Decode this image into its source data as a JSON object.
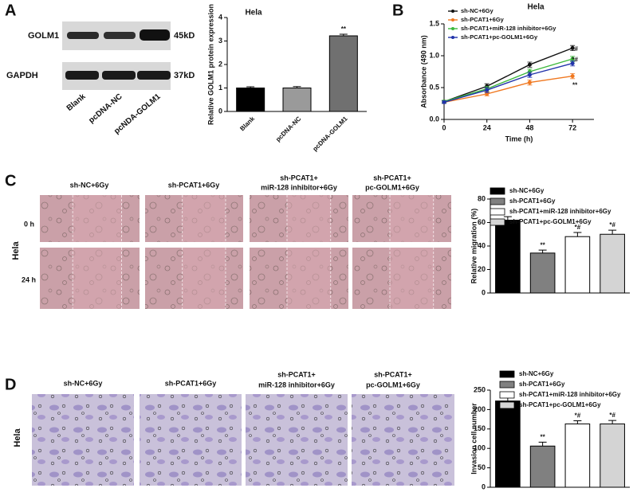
{
  "panel_labels": [
    "A",
    "B",
    "C",
    "D"
  ],
  "blot": {
    "bands": [
      "GOLM1",
      "GAPDH"
    ],
    "sizes": [
      "45kD",
      "37kD"
    ],
    "lanes": [
      "Blank",
      "pcDNA-NC",
      "pcNDA-GOLM1"
    ]
  },
  "migration": {
    "cell_line": "Hela",
    "rows": [
      "0 h",
      "24 h"
    ],
    "columns": [
      [
        "sh-NC+6Gy"
      ],
      [
        "sh-PCAT1+6Gy"
      ],
      [
        "sh-PCAT1+",
        "miR-128 inhibitor+6Gy"
      ],
      [
        "sh-PCAT1+",
        "pc-GOLM1+6Gy"
      ]
    ]
  },
  "invasion": {
    "cell_line": "Hela",
    "columns": [
      [
        "sh-NC+6Gy"
      ],
      [
        "sh-PCAT1+6Gy"
      ],
      [
        "sh-PCAT1+",
        "miR-128 inhibitor+6Gy"
      ],
      [
        "sh-PCAT1+",
        "pc-GOLM1+6Gy"
      ]
    ]
  },
  "chart_data": [
    {
      "type": "bar",
      "title": "Hela",
      "y_label": "Relative GOLM1 protein expression",
      "categories": [
        "Blank",
        "pcDNA-NC",
        "pcDNA-GOLM1"
      ],
      "values": [
        1.0,
        1.0,
        3.22
      ],
      "errors": [
        0.05,
        0.06,
        0.07
      ],
      "colors": [
        "#000000",
        "#9a9a9a",
        "#707070"
      ],
      "annotations": [
        null,
        null,
        "**"
      ],
      "ylim": [
        0,
        4
      ],
      "yticks": [
        0,
        1,
        2,
        3,
        4
      ]
    },
    {
      "type": "line",
      "title": "Hela",
      "x_label": "Time (h)",
      "y_label": "Absorbance (490 nm)",
      "x": [
        0,
        24,
        48,
        72
      ],
      "xlim": [
        0,
        84
      ],
      "xticks": [
        0,
        24,
        48,
        72
      ],
      "ylim": [
        0,
        1.5
      ],
      "yticks": [
        {
          "value": 0,
          "label": "0.0"
        },
        {
          "value": 0.5,
          "label": "0.5"
        },
        {
          "value": 1.0,
          "label": "1.0"
        },
        {
          "value": 1.5,
          "label": "1.5"
        }
      ],
      "legend": "top-left",
      "series": [
        {
          "name": "sh-NC+6Gy",
          "color": "#111111",
          "values": [
            0.28,
            0.52,
            0.86,
            1.12
          ],
          "errors": [
            0.02,
            0.04,
            0.04,
            0.04
          ],
          "annotations": [
            null,
            null,
            null,
            null
          ]
        },
        {
          "name": "sh-PCAT1+6Gy",
          "color": "#f07820",
          "values": [
            0.27,
            0.4,
            0.58,
            0.68
          ],
          "errors": [
            0.02,
            0.03,
            0.04,
            0.04
          ],
          "annotations": [
            null,
            null,
            null,
            "**"
          ]
        },
        {
          "name": "sh-PCAT1+miR-128 inhibitor+6Gy",
          "color": "#3cb83c",
          "values": [
            0.28,
            0.48,
            0.75,
            0.95
          ],
          "errors": [
            0.02,
            0.04,
            0.04,
            0.04
          ],
          "annotations": [
            null,
            null,
            null,
            "*#"
          ]
        },
        {
          "name": "sh-PCAT1+pc-GOLM1+6Gy",
          "color": "#2233aa",
          "values": [
            0.27,
            0.46,
            0.7,
            0.88
          ],
          "errors": [
            0.02,
            0.04,
            0.04,
            0.04
          ],
          "annotations": [
            null,
            null,
            null,
            "*#"
          ]
        }
      ]
    },
    {
      "type": "bar",
      "y_label": "Relative migration (%)",
      "legend": "top",
      "categories": [
        "sh-NC+6Gy",
        "sh-PCAT1+6Gy",
        "sh-PCAT1+miR-128 inhibitor+6Gy",
        "sh-PCAT1+pc-GOLM1+6Gy"
      ],
      "values": [
        62,
        34,
        48,
        50
      ],
      "errors": [
        3,
        2.5,
        3.5,
        3.5
      ],
      "colors": [
        "#000000",
        "#808080",
        "#ffffff",
        "#d4d4d4"
      ],
      "annotations": [
        null,
        "**",
        "*#",
        "*#"
      ],
      "ylim": [
        0,
        80
      ],
      "yticks": [
        0,
        20,
        40,
        60,
        80
      ]
    },
    {
      "type": "bar",
      "y_label": "Invasion cell number",
      "legend": "top",
      "categories": [
        "sh-NC+6Gy",
        "sh-PCAT1+6Gy",
        "sh-PCAT1+miR-128 inhibitor+6Gy",
        "sh-PCAT1+pc-GOLM1+6Gy"
      ],
      "values": [
        222,
        106,
        163,
        163
      ],
      "errors": [
        14,
        10,
        8,
        9
      ],
      "colors": [
        "#000000",
        "#808080",
        "#ffffff",
        "#d4d4d4"
      ],
      "annotations": [
        null,
        "**",
        "*#",
        "*#"
      ],
      "ylim": [
        0,
        250
      ],
      "yticks": [
        0,
        50,
        100,
        150,
        200,
        250
      ]
    }
  ]
}
